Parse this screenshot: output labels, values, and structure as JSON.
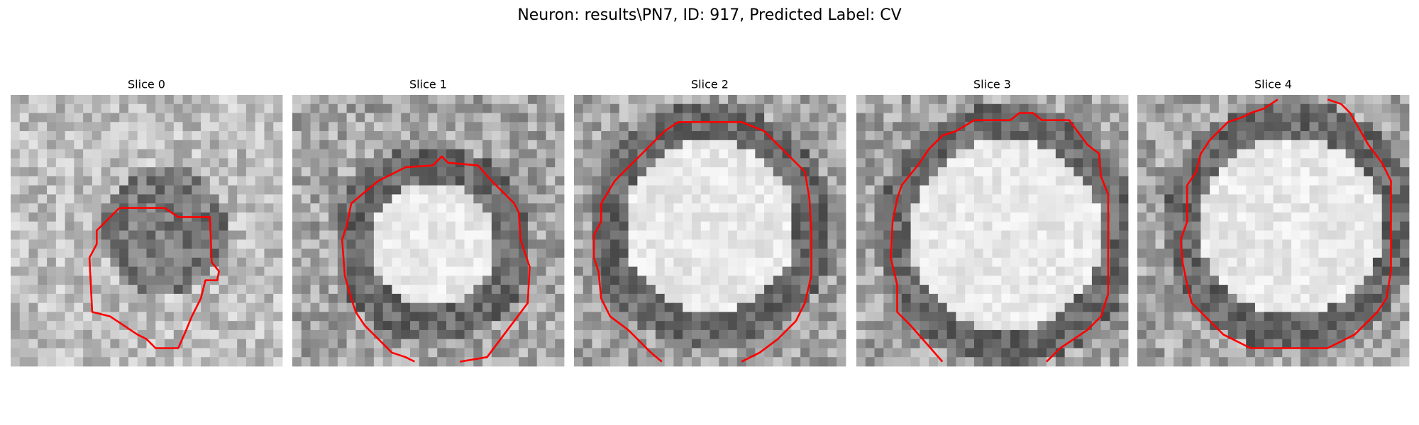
{
  "title": "Neuron: results\\PN7, ID: 917, Predicted Label: CV",
  "panels": [
    {
      "title": "Slice 0"
    },
    {
      "title": "Slice 1"
    },
    {
      "title": "Slice 2"
    },
    {
      "title": "Slice 3"
    },
    {
      "title": "Slice 4"
    }
  ]
}
